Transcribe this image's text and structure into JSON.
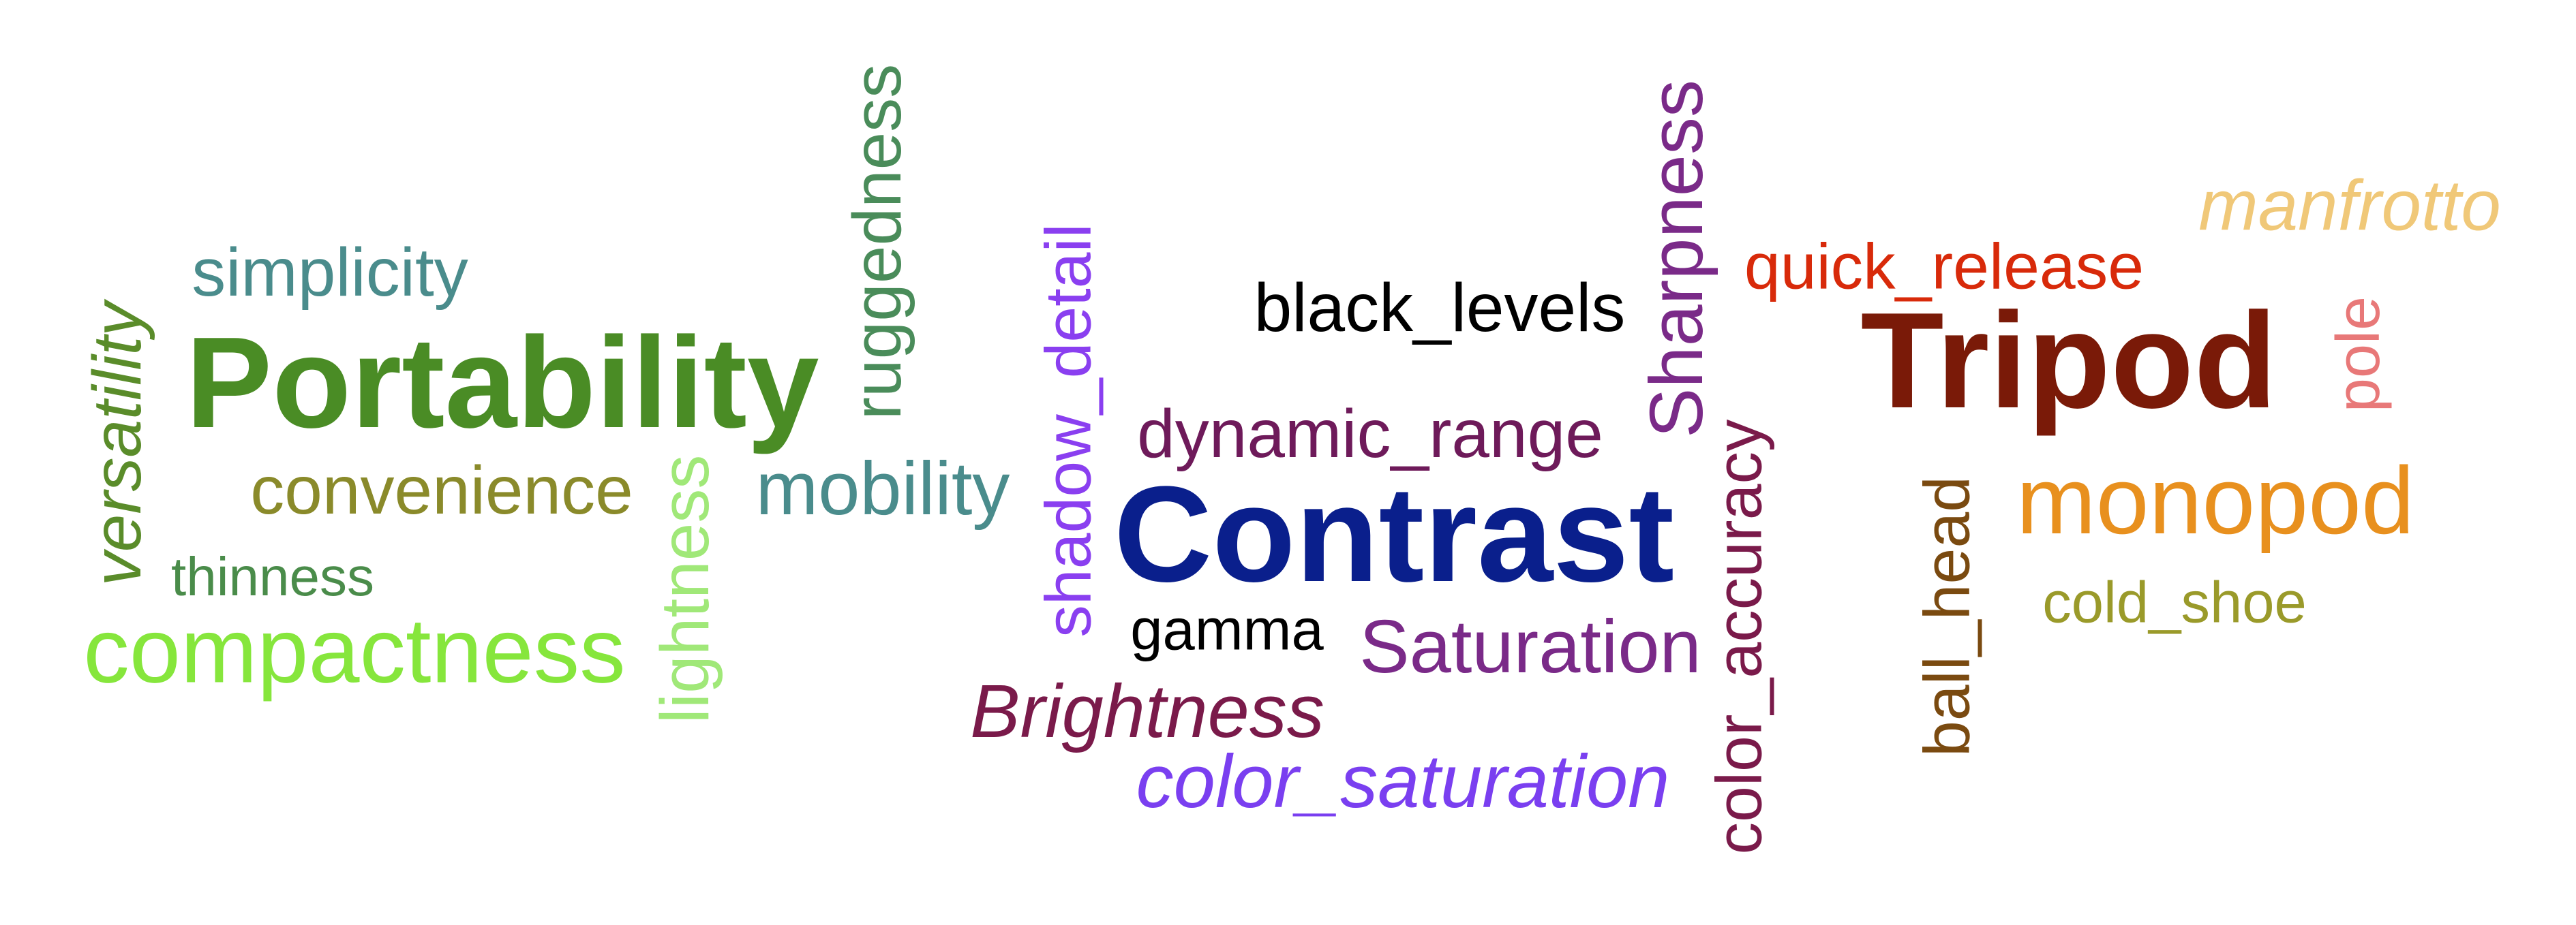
{
  "words": {
    "tripod": {
      "text": "Tripod",
      "color": "#7a1a08"
    },
    "contrast": {
      "text": "Contrast",
      "color": "#0a1f8c"
    },
    "portability": {
      "text": "Portability",
      "color": "#4a8c25"
    },
    "compactness": {
      "text": "compactness",
      "color": "#86e63c"
    },
    "monopod": {
      "text": "monopod",
      "color": "#e8901e"
    },
    "sharpness": {
      "text": "Sharpness",
      "color": "#7a2a88"
    },
    "saturation": {
      "text": "Saturation",
      "color": "#7a2a88"
    },
    "color_saturation": {
      "text": "color_saturation",
      "color": "#7a3ff0"
    },
    "brightness": {
      "text": "Brightness",
      "color": "#7a1a4a"
    },
    "dynamic_range": {
      "text": "dynamic_range",
      "color": "#6e1a5a"
    },
    "black_levels": {
      "text": "black_levels",
      "color": "#000000"
    },
    "gamma": {
      "text": "gamma",
      "color": "#000000"
    },
    "shadow_detail": {
      "text": "shadow_detail",
      "color": "#8a3ff0"
    },
    "color_accuracy": {
      "text": "color_accuracy",
      "color": "#7a1a4a"
    },
    "quick_release": {
      "text": "quick_release",
      "color": "#d82a0a"
    },
    "manfrotto": {
      "text": "manfrotto",
      "color": "#f0c878"
    },
    "pole": {
      "text": "pole",
      "color": "#e87878"
    },
    "ball_head": {
      "text": "ball_head",
      "color": "#7a4a10"
    },
    "cold_shoe": {
      "text": "cold_shoe",
      "color": "#9a9a2a"
    },
    "simplicity": {
      "text": "simplicity",
      "color": "#4a8c8c"
    },
    "convenience": {
      "text": "convenience",
      "color": "#8a8a2a"
    },
    "thinness": {
      "text": "thinness",
      "color": "#4a8c4a"
    },
    "versatility": {
      "text": "versatility",
      "color": "#5a8c2a"
    },
    "lightness": {
      "text": "lightness",
      "color": "#a0e878"
    },
    "ruggedness": {
      "text": "ruggedness",
      "color": "#4a8c5a"
    },
    "mobility": {
      "text": "mobility",
      "color": "#4a8c8c"
    }
  }
}
